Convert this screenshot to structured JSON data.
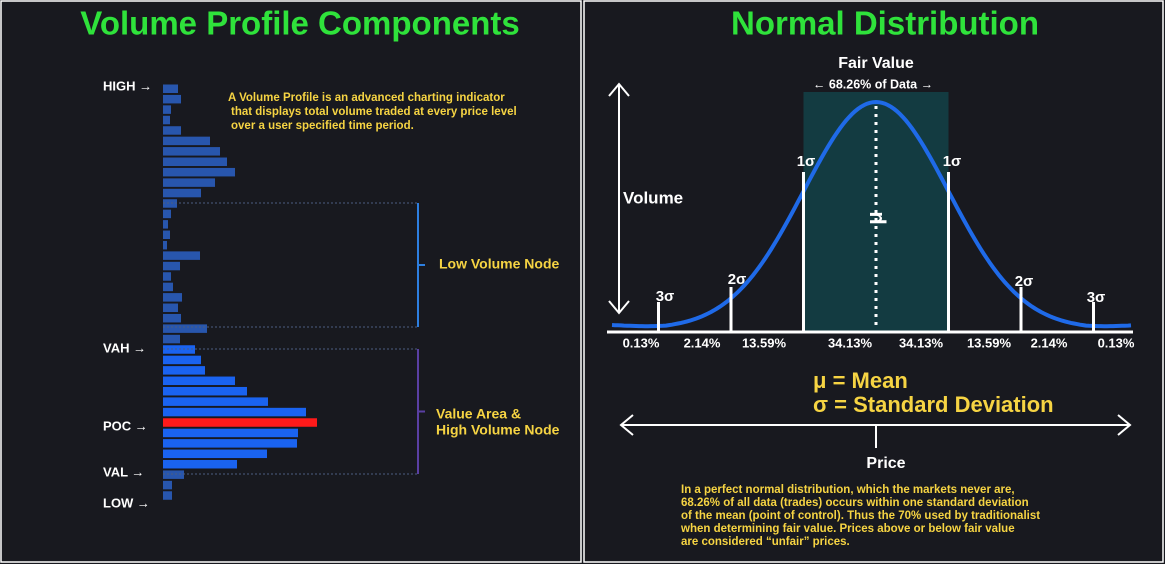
{
  "left": {
    "title": "Volume Profile Components",
    "description": [
      "A Volume Profile is an advanced charting indicator",
      "that displays total volume traded at every price level",
      "over a user specified time period."
    ],
    "levels": [
      "HIGH →",
      "VAH →",
      "POC →",
      "VAL →",
      "LOW →"
    ],
    "low_volume_node": "Low Volume Node",
    "value_area": [
      "Value Area &",
      "High Volume Node"
    ],
    "profile": [
      {
        "color": "#2856ad",
        "values": [
          15,
          18,
          8,
          7,
          18,
          47,
          57,
          64,
          72,
          52,
          38,
          14,
          8,
          5,
          7,
          4,
          37,
          17,
          8,
          10,
          19,
          15,
          18,
          44,
          17
        ]
      },
      {
        "color": "#1a63f0",
        "values": [
          32,
          38,
          42,
          72,
          84,
          105,
          143
        ]
      },
      {
        "color": "#ff1a1a",
        "values": [
          154
        ]
      },
      {
        "color": "#1a63f0",
        "values": [
          135,
          134,
          104,
          74
        ]
      },
      {
        "color": "#2856ad",
        "values": [
          21,
          9,
          9
        ]
      }
    ]
  },
  "right": {
    "title": "Normal Distribution",
    "fair_value": "Fair Value",
    "data_share": "← 68.26% of Data →",
    "volume": "Volume",
    "mu": "μ",
    "sigma_labels": [
      "3σ",
      "2σ",
      "1σ",
      "1σ",
      "2σ",
      "3σ"
    ],
    "percentages": [
      "0.13%",
      "2.14%",
      "13.59%",
      "34.13%",
      "34.13%",
      "13.59%",
      "2.14%",
      "0.13%"
    ],
    "legend": [
      "μ = Mean",
      "σ = Standard Deviation"
    ],
    "price": "Price",
    "note": [
      "In a perfect normal distribution, which the markets never are,",
      "68.26% of all data (trades) occurs within one standard deviation",
      "of the mean (point of control). Thus the 70% used by traditionalist",
      "when determining fair value. Prices above or below fair value",
      "are considered “unfair” prices."
    ]
  }
}
